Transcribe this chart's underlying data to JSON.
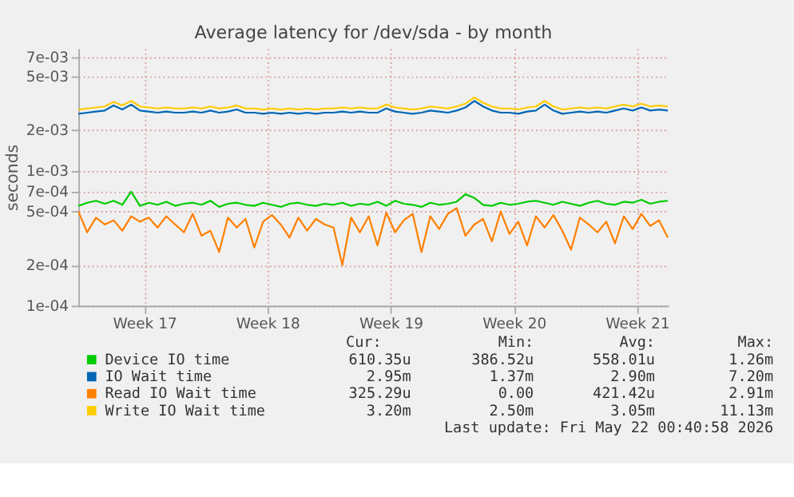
{
  "chart_data": {
    "type": "line",
    "title": "Average latency for /dev/sda - by month",
    "ylabel": "seconds",
    "log": "y",
    "grid": true,
    "legend": "bottom",
    "line_style": "solid",
    "marker": "none",
    "ylim": [
      0.0001,
      0.0081
    ],
    "yticks": [
      {
        "value": 0.0001,
        "label": "1e-04"
      },
      {
        "value": 0.0002,
        "label": "2e-04"
      },
      {
        "value": 0.0005,
        "label": "5e-04"
      },
      {
        "value": 0.0007,
        "label": "7e-04"
      },
      {
        "value": 0.001,
        "label": "1e-03"
      },
      {
        "value": 0.002,
        "label": "2e-03"
      },
      {
        "value": 0.005,
        "label": "5e-03"
      },
      {
        "value": 0.007,
        "label": "7e-03"
      }
    ],
    "xlim": [
      "2026-04-18T12:00",
      "2026-05-22T00:40"
    ],
    "xticks": [
      {
        "value": "2026-04-22T06:00",
        "label": "Week 17"
      },
      {
        "value": "2026-04-29T06:00",
        "label": "Week 18"
      },
      {
        "value": "2026-05-06T06:00",
        "label": "Week 19"
      },
      {
        "value": "2026-05-13T06:00",
        "label": "Week 20"
      },
      {
        "value": "2026-05-20T06:00",
        "label": "Week 21"
      }
    ],
    "x": [
      "2026-04-18T12:00",
      "2026-04-19T00:00",
      "2026-04-19T12:00",
      "2026-04-20T00:00",
      "2026-04-20T12:00",
      "2026-04-21T00:00",
      "2026-04-21T12:00",
      "2026-04-22T00:00",
      "2026-04-22T12:00",
      "2026-04-23T00:00",
      "2026-04-23T12:00",
      "2026-04-24T00:00",
      "2026-04-24T12:00",
      "2026-04-25T00:00",
      "2026-04-25T12:00",
      "2026-04-26T00:00",
      "2026-04-26T12:00",
      "2026-04-27T00:00",
      "2026-04-27T12:00",
      "2026-04-28T00:00",
      "2026-04-28T12:00",
      "2026-04-29T00:00",
      "2026-04-29T12:00",
      "2026-04-30T00:00",
      "2026-04-30T12:00",
      "2026-05-01T00:00",
      "2026-05-01T12:00",
      "2026-05-02T00:00",
      "2026-05-02T12:00",
      "2026-05-03T00:00",
      "2026-05-03T12:00",
      "2026-05-04T00:00",
      "2026-05-04T12:00",
      "2026-05-05T00:00",
      "2026-05-05T12:00",
      "2026-05-06T00:00",
      "2026-05-06T12:00",
      "2026-05-07T00:00",
      "2026-05-07T12:00",
      "2026-05-08T00:00",
      "2026-05-08T12:00",
      "2026-05-09T00:00",
      "2026-05-09T12:00",
      "2026-05-10T00:00",
      "2026-05-10T12:00",
      "2026-05-11T00:00",
      "2026-05-11T12:00",
      "2026-05-12T00:00",
      "2026-05-12T12:00",
      "2026-05-13T00:00",
      "2026-05-13T12:00",
      "2026-05-14T00:00",
      "2026-05-14T12:00",
      "2026-05-15T00:00",
      "2026-05-15T12:00",
      "2026-05-16T00:00",
      "2026-05-16T12:00",
      "2026-05-17T00:00",
      "2026-05-17T12:00",
      "2026-05-18T00:00",
      "2026-05-18T12:00",
      "2026-05-19T00:00",
      "2026-05-19T12:00",
      "2026-05-20T00:00",
      "2026-05-20T12:00",
      "2026-05-21T00:00",
      "2026-05-21T12:00",
      "2026-05-22T00:00"
    ],
    "series": [
      {
        "name": "Device IO time",
        "color": "#00cc00",
        "values": [
          0.00055,
          0.00058,
          0.0006,
          0.00057,
          0.0006,
          0.00056,
          0.0007,
          0.00055,
          0.00058,
          0.00056,
          0.00059,
          0.00055,
          0.00057,
          0.00058,
          0.00056,
          0.0006,
          0.00054,
          0.00057,
          0.00058,
          0.00056,
          0.00055,
          0.00058,
          0.00056,
          0.00054,
          0.00057,
          0.00058,
          0.00056,
          0.00055,
          0.00057,
          0.00056,
          0.00058,
          0.00055,
          0.00057,
          0.00056,
          0.00059,
          0.00055,
          0.0006,
          0.00057,
          0.00056,
          0.00054,
          0.00058,
          0.00056,
          0.00057,
          0.00059,
          0.00067,
          0.00063,
          0.00056,
          0.00055,
          0.00058,
          0.00056,
          0.00057,
          0.00059,
          0.0006,
          0.00058,
          0.00056,
          0.00059,
          0.00057,
          0.00055,
          0.00058,
          0.0006,
          0.00057,
          0.00056,
          0.00059,
          0.00058,
          0.00061,
          0.00057,
          0.00059,
          0.0006
        ]
      },
      {
        "name": "IO Wait time",
        "color": "#0066b3",
        "values": [
          0.00265,
          0.0027,
          0.00275,
          0.0028,
          0.00305,
          0.00285,
          0.0031,
          0.0028,
          0.00275,
          0.0027,
          0.00275,
          0.0027,
          0.0027,
          0.00275,
          0.0027,
          0.0028,
          0.0027,
          0.00275,
          0.00285,
          0.0027,
          0.0027,
          0.00265,
          0.0027,
          0.00265,
          0.0027,
          0.00265,
          0.0027,
          0.00265,
          0.0027,
          0.0027,
          0.00275,
          0.0027,
          0.00275,
          0.0027,
          0.0027,
          0.0029,
          0.00275,
          0.0027,
          0.00265,
          0.0027,
          0.0028,
          0.00275,
          0.0027,
          0.0028,
          0.00295,
          0.0033,
          0.003,
          0.0028,
          0.0027,
          0.0027,
          0.00265,
          0.00275,
          0.0028,
          0.0031,
          0.0028,
          0.00265,
          0.0027,
          0.00275,
          0.0027,
          0.00275,
          0.0027,
          0.0028,
          0.0029,
          0.0028,
          0.00295,
          0.0028,
          0.00285,
          0.0028
        ]
      },
      {
        "name": "Read IO Wait time",
        "color": "#ff8000",
        "values": [
          0.0005,
          0.00035,
          0.00045,
          0.0004,
          0.00043,
          0.00036,
          0.00046,
          0.00042,
          0.00045,
          0.00038,
          0.00046,
          0.0004,
          0.00035,
          0.00048,
          0.00033,
          0.00036,
          0.00025,
          0.00045,
          0.00038,
          0.00044,
          0.00027,
          0.00042,
          0.00047,
          0.0004,
          0.00032,
          0.00045,
          0.00036,
          0.00044,
          0.0004,
          0.00038,
          0.0002,
          0.00045,
          0.00035,
          0.00046,
          0.00028,
          0.00049,
          0.00035,
          0.00043,
          0.00048,
          0.00025,
          0.00046,
          0.00037,
          0.00048,
          0.00053,
          0.00033,
          0.0004,
          0.00044,
          0.0003,
          0.0005,
          0.00034,
          0.00042,
          0.00028,
          0.00046,
          0.00038,
          0.00047,
          0.00036,
          0.00026,
          0.00045,
          0.0004,
          0.00035,
          0.00042,
          0.00029,
          0.00046,
          0.00037,
          0.00048,
          0.00039,
          0.00043,
          0.00032
        ]
      },
      {
        "name": "Write IO Wait time",
        "color": "#ffcc00",
        "values": [
          0.00285,
          0.0029,
          0.00295,
          0.003,
          0.00325,
          0.00305,
          0.0033,
          0.003,
          0.00295,
          0.0029,
          0.00295,
          0.0029,
          0.0029,
          0.00295,
          0.0029,
          0.003,
          0.0029,
          0.00295,
          0.00305,
          0.0029,
          0.0029,
          0.00285,
          0.0029,
          0.00285,
          0.0029,
          0.00285,
          0.0029,
          0.00285,
          0.0029,
          0.0029,
          0.00295,
          0.0029,
          0.00295,
          0.0029,
          0.0029,
          0.0031,
          0.00295,
          0.0029,
          0.00285,
          0.0029,
          0.003,
          0.00295,
          0.0029,
          0.003,
          0.00315,
          0.0035,
          0.0032,
          0.003,
          0.0029,
          0.0029,
          0.00285,
          0.00295,
          0.003,
          0.0033,
          0.003,
          0.00285,
          0.0029,
          0.00295,
          0.0029,
          0.00295,
          0.0029,
          0.003,
          0.0031,
          0.003,
          0.00315,
          0.003,
          0.00305,
          0.003
        ]
      }
    ],
    "annotations": [
      "Cur:",
      "Min:",
      "Avg:",
      "Max:",
      "610.35u",
      "386.52u",
      "558.01u",
      "1.26m",
      "2.95m",
      "1.37m",
      "2.90m",
      "7.20m",
      "325.29u",
      "0.00",
      "421.42u",
      "2.91m",
      "3.20m",
      "2.50m",
      "3.05m",
      "11.13m",
      "Last update: Fri May 22 00:40:58 2026"
    ]
  }
}
